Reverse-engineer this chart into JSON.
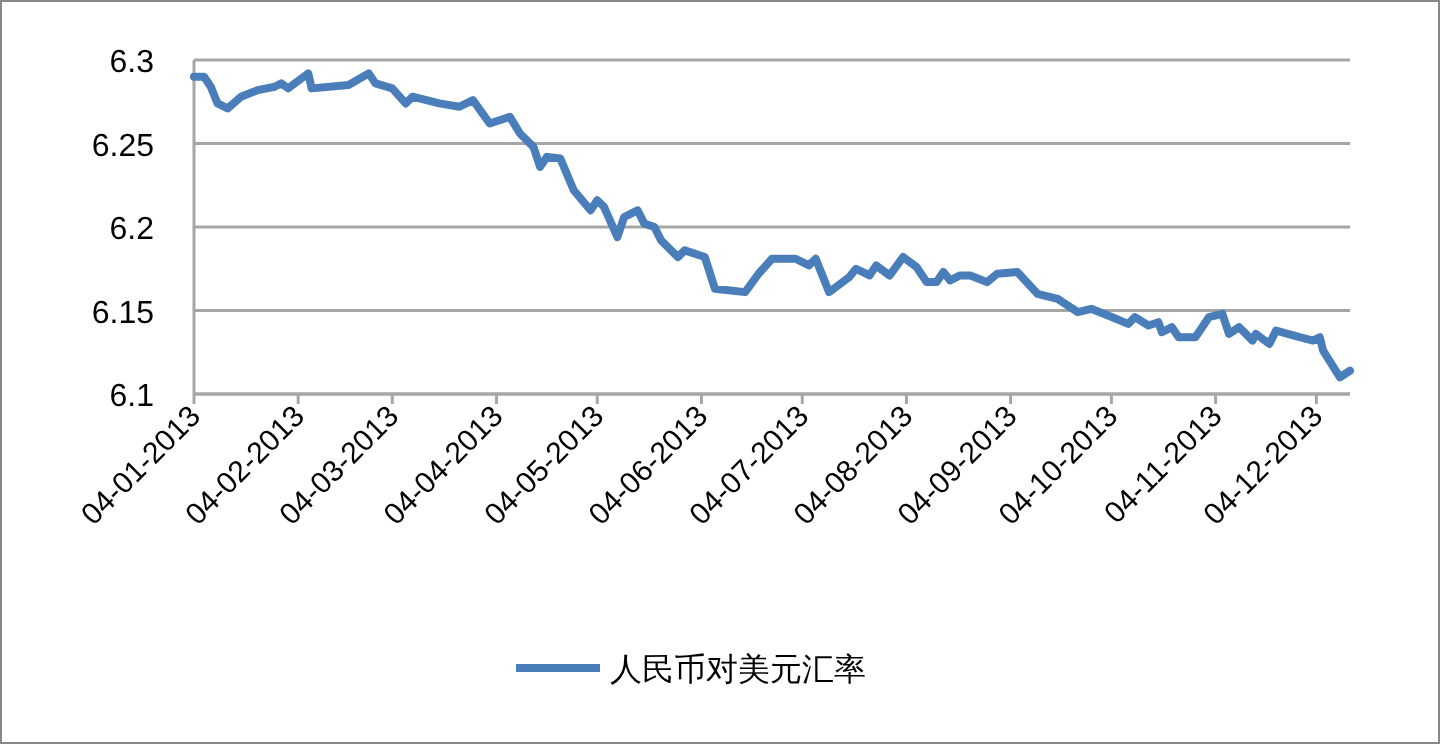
{
  "chart_data": {
    "type": "line",
    "x": [
      "2013-01-04",
      "2013-01-07",
      "2013-01-09",
      "2013-01-11",
      "2013-01-14",
      "2013-01-18",
      "2013-01-23",
      "2013-01-28",
      "2013-01-30",
      "2013-02-01",
      "2013-02-07",
      "2013-02-08",
      "2013-02-19",
      "2013-02-25",
      "2013-02-27",
      "2013-03-04",
      "2013-03-08",
      "2013-03-10",
      "2013-03-18",
      "2013-03-24",
      "2013-03-28",
      "2013-04-02",
      "2013-04-08",
      "2013-04-11",
      "2013-04-15",
      "2013-04-17",
      "2013-04-19",
      "2013-04-23",
      "2013-04-27",
      "2013-05-02",
      "2013-05-04",
      "2013-05-06",
      "2013-05-10",
      "2013-05-12",
      "2013-05-16",
      "2013-05-18",
      "2013-05-21",
      "2013-05-23",
      "2013-05-28",
      "2013-05-30",
      "2013-06-05",
      "2013-06-08",
      "2013-06-17",
      "2013-06-21",
      "2013-06-25",
      "2013-07-02",
      "2013-07-06",
      "2013-07-08",
      "2013-07-12",
      "2013-07-18",
      "2013-07-20",
      "2013-07-24",
      "2013-07-26",
      "2013-07-30",
      "2013-08-03",
      "2013-08-07",
      "2013-08-10",
      "2013-08-13",
      "2013-08-15",
      "2013-08-17",
      "2013-08-20",
      "2013-08-23",
      "2013-08-28",
      "2013-08-31",
      "2013-09-06",
      "2013-09-12",
      "2013-09-18",
      "2013-09-24",
      "2013-09-28",
      "2013-10-03",
      "2013-10-09",
      "2013-10-11",
      "2013-10-15",
      "2013-10-18",
      "2013-10-19",
      "2013-10-22",
      "2013-10-24",
      "2013-10-29",
      "2013-11-02",
      "2013-11-06",
      "2013-11-08",
      "2013-11-11",
      "2013-11-15",
      "2013-11-16",
      "2013-11-20",
      "2013-11-22",
      "2013-11-29",
      "2013-12-03",
      "2013-12-05",
      "2013-12-06",
      "2013-12-11",
      "2013-12-14"
    ],
    "series": [
      {
        "name": "人民币对美元汇率",
        "color": "#4a7ebb",
        "values": [
          6.29,
          6.29,
          6.284,
          6.274,
          6.271,
          6.278,
          6.282,
          6.284,
          6.286,
          6.283,
          6.292,
          6.283,
          6.285,
          6.292,
          6.286,
          6.283,
          6.274,
          6.278,
          6.274,
          6.272,
          6.276,
          6.262,
          6.266,
          6.256,
          6.248,
          6.236,
          6.242,
          6.241,
          6.222,
          6.21,
          6.216,
          6.212,
          6.194,
          6.206,
          6.21,
          6.202,
          6.2,
          6.192,
          6.182,
          6.186,
          6.182,
          6.163,
          6.161,
          6.172,
          6.181,
          6.181,
          6.177,
          6.181,
          6.161,
          6.17,
          6.175,
          6.171,
          6.177,
          6.171,
          6.182,
          6.176,
          6.167,
          6.167,
          6.173,
          6.168,
          6.171,
          6.171,
          6.167,
          6.172,
          6.173,
          6.16,
          6.157,
          6.149,
          6.151,
          6.147,
          6.142,
          6.146,
          6.141,
          6.143,
          6.137,
          6.14,
          6.134,
          6.134,
          6.146,
          6.148,
          6.136,
          6.14,
          6.132,
          6.136,
          6.13,
          6.138,
          6.134,
          6.132,
          6.134,
          6.126,
          6.11,
          6.114
        ]
      }
    ],
    "xlim": [
      "2013-01-04",
      "2013-12-14"
    ],
    "xticks": [
      {
        "value": "2013-01-04",
        "label": "04-01-2013"
      },
      {
        "value": "2013-02-04",
        "label": "04-02-2013"
      },
      {
        "value": "2013-03-04",
        "label": "04-03-2013"
      },
      {
        "value": "2013-04-04",
        "label": "04-04-2013"
      },
      {
        "value": "2013-05-04",
        "label": "04-05-2013"
      },
      {
        "value": "2013-06-04",
        "label": "04-06-2013"
      },
      {
        "value": "2013-07-04",
        "label": "04-07-2013"
      },
      {
        "value": "2013-08-04",
        "label": "04-08-2013"
      },
      {
        "value": "2013-09-04",
        "label": "04-09-2013"
      },
      {
        "value": "2013-10-04",
        "label": "04-10-2013"
      },
      {
        "value": "2013-11-04",
        "label": "04-11-2013"
      },
      {
        "value": "2013-12-04",
        "label": "04-12-2013"
      }
    ],
    "ylim": [
      6.1,
      6.3
    ],
    "yticks": [
      6.1,
      6.15,
      6.2,
      6.25,
      6.3
    ],
    "grid": "y",
    "legend": "bottom",
    "marker": "none",
    "line_style": "solid"
  }
}
